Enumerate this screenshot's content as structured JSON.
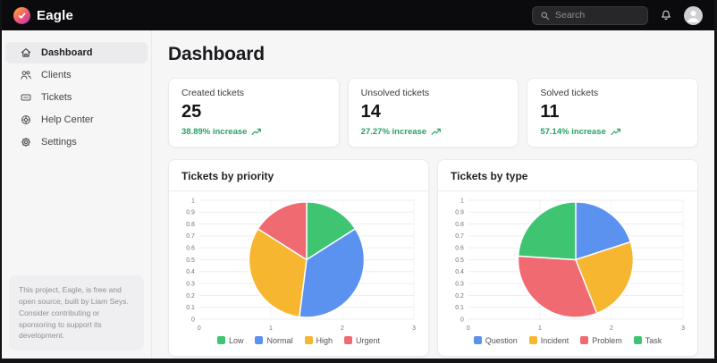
{
  "topbar": {
    "brand": "Eagle",
    "search_placeholder": "Search"
  },
  "sidebar": {
    "items": [
      {
        "label": "Dashboard",
        "active": true
      },
      {
        "label": "Clients",
        "active": false
      },
      {
        "label": "Tickets",
        "active": false
      },
      {
        "label": "Help Center",
        "active": false
      },
      {
        "label": "Settings",
        "active": false
      }
    ],
    "footer_note": "This project, Eagle, is free and open source, built by Liam Seys. Consider contributing or sponsoring to support its development."
  },
  "main": {
    "title": "Dashboard",
    "stat_cards": [
      {
        "label": "Created tickets",
        "value": "25",
        "change": "38.89% increase"
      },
      {
        "label": "Unsolved tickets",
        "value": "14",
        "change": "27.27% increase"
      },
      {
        "label": "Solved tickets",
        "value": "11",
        "change": "57.14% increase"
      }
    ]
  },
  "colors": {
    "topbar_bg": "#0b0b0d",
    "accent_green": "#27a263",
    "chart_green": "#3fc572",
    "chart_blue": "#5b92ef",
    "chart_yellow": "#f7b62f",
    "chart_red": "#f06a72"
  },
  "chart_data": [
    {
      "type": "pie",
      "title": "Tickets by priority",
      "total": 25,
      "series": [
        {
          "name": "Low",
          "value": 4,
          "fraction": 0.16,
          "color": "#3fc572"
        },
        {
          "name": "Normal",
          "value": 9,
          "fraction": 0.36,
          "color": "#5b92ef"
        },
        {
          "name": "High",
          "value": 8,
          "fraction": 0.32,
          "color": "#f7b62f"
        },
        {
          "name": "Urgent",
          "value": 4,
          "fraction": 0.16,
          "color": "#f06a72"
        }
      ],
      "y_ticks": [
        "0",
        "0.1",
        "0.2",
        "0.3",
        "0.4",
        "0.5",
        "0.6",
        "0.7",
        "0.8",
        "0.9",
        "1"
      ],
      "x_ticks": [
        "0",
        "1",
        "2",
        "3"
      ],
      "grid": true,
      "legend_position": "bottom"
    },
    {
      "type": "pie",
      "title": "Tickets by type",
      "total": 25,
      "series": [
        {
          "name": "Question",
          "value": 5,
          "fraction": 0.2,
          "color": "#5b92ef"
        },
        {
          "name": "Incident",
          "value": 6,
          "fraction": 0.24,
          "color": "#f7b62f"
        },
        {
          "name": "Problem",
          "value": 8,
          "fraction": 0.32,
          "color": "#f06a72"
        },
        {
          "name": "Task",
          "value": 6,
          "fraction": 0.24,
          "color": "#3fc572"
        }
      ],
      "y_ticks": [
        "0",
        "0.1",
        "0.2",
        "0.3",
        "0.4",
        "0.5",
        "0.6",
        "0.7",
        "0.8",
        "0.9",
        "1"
      ],
      "x_ticks": [
        "0",
        "1",
        "2",
        "3"
      ],
      "grid": true,
      "legend_position": "bottom"
    }
  ]
}
